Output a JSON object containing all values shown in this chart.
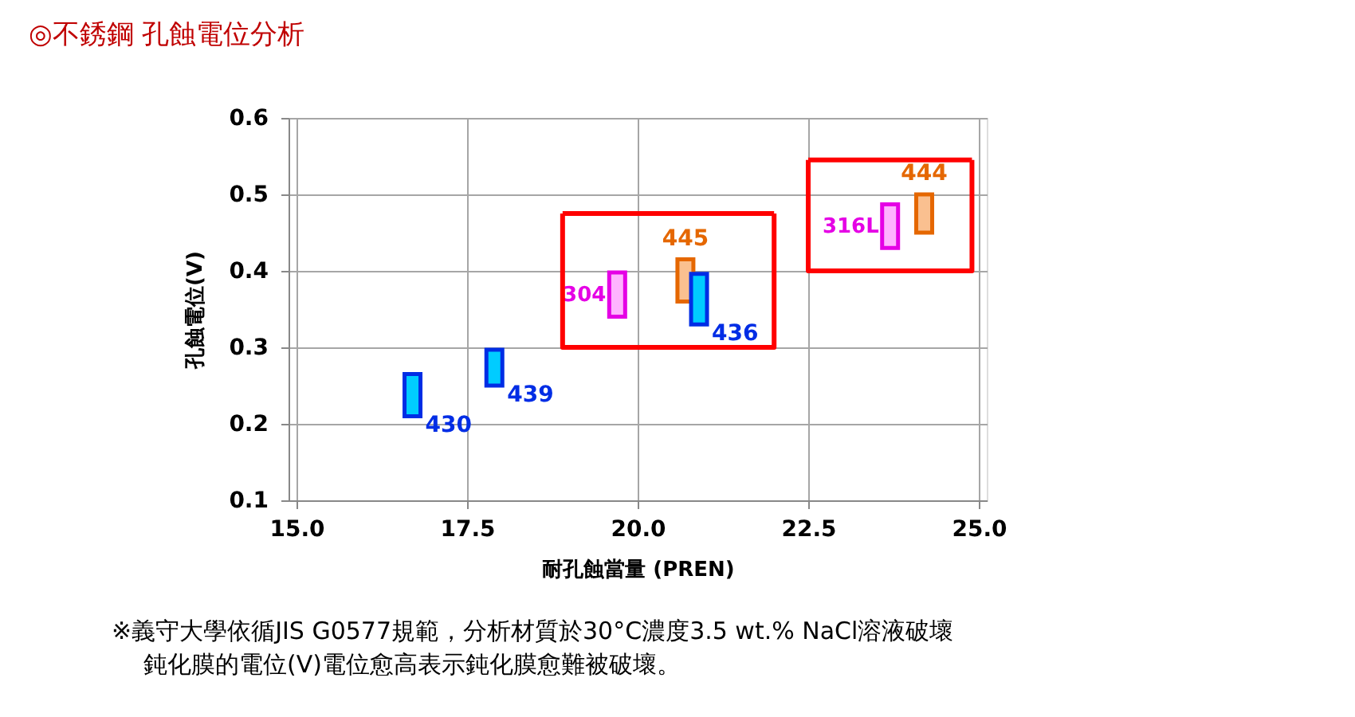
{
  "chart_data": {
    "type": "bar",
    "title": "◎不銹鋼 孔蝕電位分析",
    "xlabel": "耐孔蝕當量 (PREN)",
    "ylabel": "孔蝕電位(V)",
    "annotations": [
      "※義守大學依循JIS  G0577規範，分析材質於30°C濃度3.5  wt.%  NaCl溶液破壞",
      "鈍化膜的電位(V)電位愈高表示鈍化膜愈難被破壞。"
    ],
    "xlim": [
      15,
      25
    ],
    "xticks": [
      {
        "value": 15,
        "label": "15.0"
      },
      17.5,
      {
        "value": 20,
        "label": "20.0"
      },
      22.5,
      {
        "value": 25,
        "label": "25.0"
      }
    ],
    "ylim": [
      0.1,
      0.6
    ],
    "yticks": [
      0.1,
      0.2,
      0.3,
      0.4,
      0.5,
      0.6
    ],
    "grid": true,
    "series": [
      {
        "name": "430",
        "color": "#00ccff",
        "x": [
          16.7
        ],
        "base": [
          0.21
        ],
        "values": [
          0.055
        ]
      },
      {
        "name": "439",
        "color": "#00ccff",
        "x": [
          17.9
        ],
        "base": [
          0.25
        ],
        "values": [
          0.047
        ]
      },
      {
        "name": "304",
        "color": "#ffb3ff",
        "x": [
          19.7
        ],
        "base": [
          0.34
        ],
        "values": [
          0.058
        ]
      },
      {
        "name": "445",
        "color": "#fac090",
        "x": [
          20.7
        ],
        "base": [
          0.36
        ],
        "values": [
          0.055
        ]
      },
      {
        "name": "436",
        "color": "#00ccff",
        "x": [
          20.9
        ],
        "base": [
          0.33
        ],
        "values": [
          0.066
        ]
      },
      {
        "name": "316L",
        "color": "#ffb3ff",
        "x": [
          23.7
        ],
        "base": [
          0.43
        ],
        "values": [
          0.057
        ]
      },
      {
        "name": "444",
        "color": "#fac090",
        "x": [
          24.2
        ],
        "base": [
          0.45
        ],
        "values": [
          0.05
        ]
      },
      {
        "type": "line",
        "color": "#ff0000",
        "x": [
          18.9,
          18.9,
          22.0,
          22.0
        ],
        "values": [
          0.475,
          0.3,
          0.3,
          0.475
        ]
      },
      {
        "type": "line",
        "color": "#ff0000",
        "x": [
          18.9,
          22.0
        ],
        "values": [
          0.475,
          0.475
        ]
      },
      {
        "type": "line",
        "color": "#ff0000",
        "x": [
          22.5,
          22.5,
          24.9,
          24.9
        ],
        "values": [
          0.545,
          0.4,
          0.4,
          0.545
        ]
      },
      {
        "type": "line",
        "color": "#ff0000",
        "x": [
          22.5,
          24.9
        ],
        "values": [
          0.545,
          0.545
        ]
      }
    ]
  }
}
